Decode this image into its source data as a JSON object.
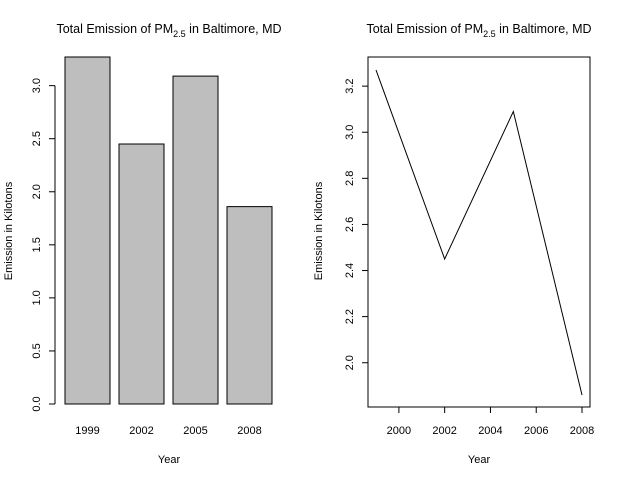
{
  "chart_data": [
    {
      "type": "bar",
      "title": "Total Emission of PM",
      "title_subscript": "2.5",
      "title_suffix": " in Baltimore, MD",
      "xlabel": "Year",
      "ylabel": "Emission in Kilotons",
      "categories": [
        "1999",
        "2002",
        "2005",
        "2008"
      ],
      "values": [
        3.27,
        2.45,
        3.09,
        1.86
      ],
      "ylim": [
        0,
        3.27
      ],
      "yticks": [
        0.0,
        0.5,
        1.0,
        1.5,
        2.0,
        2.5,
        3.0
      ],
      "ytick_labels": [
        "0.0",
        "0.5",
        "1.0",
        "1.5",
        "2.0",
        "2.5",
        "3.0"
      ],
      "bar_color": "#bebebe",
      "grid": false
    },
    {
      "type": "line",
      "title": "Total Emission of PM",
      "title_subscript": "2.5",
      "title_suffix": " in Baltimore, MD",
      "xlabel": "Year",
      "ylabel": "Emission in Kilotons",
      "x": [
        1999,
        2002,
        2005,
        2008
      ],
      "y": [
        3.27,
        2.45,
        3.09,
        1.86
      ],
      "xlim": [
        1999,
        2008
      ],
      "ylim": [
        1.86,
        3.27
      ],
      "xticks": [
        2000,
        2002,
        2004,
        2006,
        2008
      ],
      "xtick_labels": [
        "2000",
        "2002",
        "2004",
        "2006",
        "2008"
      ],
      "yticks": [
        2.0,
        2.2,
        2.4,
        2.6,
        2.8,
        3.0,
        3.2
      ],
      "ytick_labels": [
        "2.0",
        "2.2",
        "2.4",
        "2.6",
        "2.8",
        "3.0",
        "3.2"
      ],
      "line_color": "#000000",
      "grid": false
    }
  ]
}
